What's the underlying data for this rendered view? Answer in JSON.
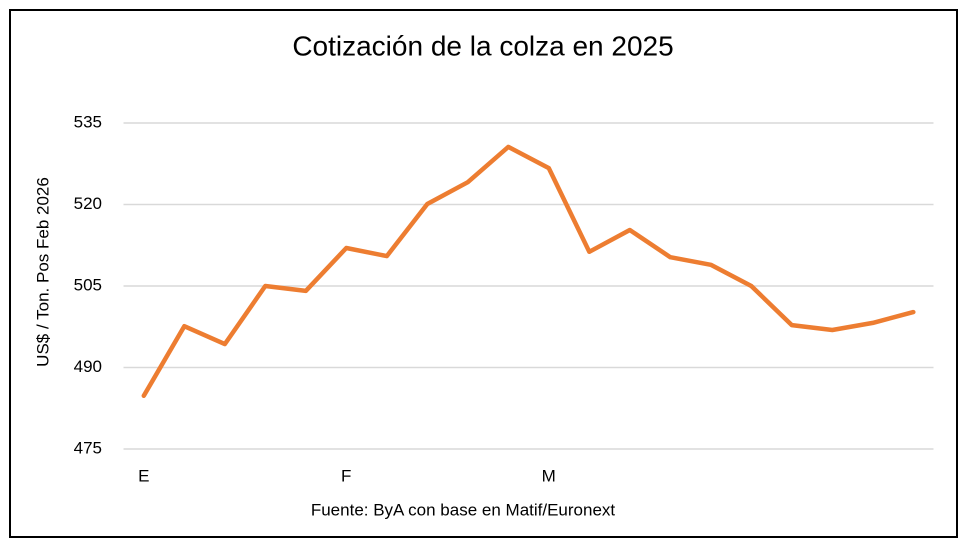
{
  "chart_data": {
    "type": "line",
    "title": "Cotización de la colza en 2025",
    "y_label": "US$ / Ton. Pos Feb 2026",
    "source": "Fuente: ByA con base en Matif/Euronext",
    "categories": [
      "E",
      null,
      null,
      null,
      null,
      "F",
      null,
      null,
      null,
      null,
      "M",
      null,
      null,
      null,
      null,
      null,
      null,
      null,
      null,
      null
    ],
    "values": [
      484.8,
      497.6,
      494.3,
      505.0,
      504.1,
      512.0,
      510.5,
      520.1,
      524.1,
      530.6,
      526.7,
      511.3,
      515.3,
      510.3,
      508.9,
      505.0,
      497.8,
      496.9,
      498.2,
      500.2
    ],
    "color": "#ed7d31",
    "ylim": [
      475,
      535
    ],
    "yticks": [
      475,
      490,
      505,
      520,
      535
    ],
    "grid": true
  }
}
